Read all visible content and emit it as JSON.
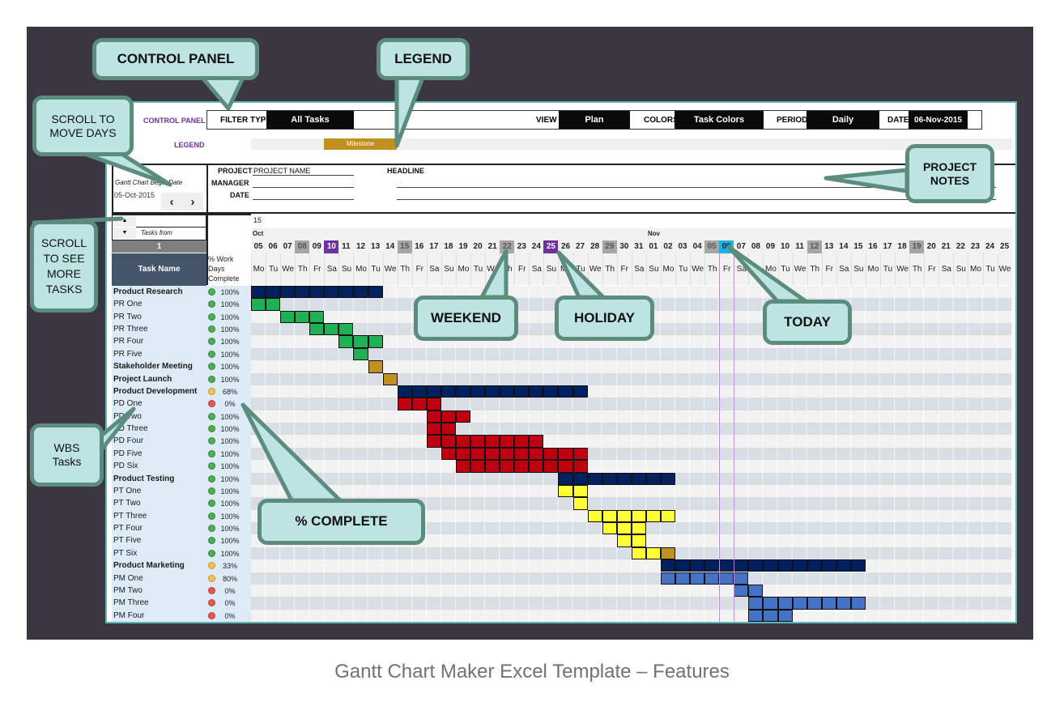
{
  "caption": "Gantt Chart Maker Excel Template – Features",
  "control_panel": {
    "title": "CONTROL PANEL",
    "filter_type_label": "FILTER TYPE",
    "filter_type": "All Tasks",
    "view_label": "VIEW",
    "view": "Plan",
    "colors_label": "COLORS",
    "colors": "Task Colors",
    "period_label": "PERIOD",
    "period": "Daily",
    "date_label": "DATE",
    "date": "06-Nov-2015"
  },
  "legend": {
    "title": "LEGEND",
    "items": [
      {
        "label": "Milestone",
        "color": "#c09020"
      }
    ]
  },
  "project": {
    "project_label": "PROJECT",
    "project_name": "PROJECT NAME",
    "manager_label": "MANAGER",
    "date_label": "DATE",
    "headline_label": "HEADLINE"
  },
  "begin_date": {
    "label": "Gantt Chart Begin Date",
    "value": "05-Oct-2015",
    "prev_icon": "chevron-left-icon",
    "next_icon": "chevron-right-icon"
  },
  "task_scroll": {
    "up_icon": "triangle-up-icon",
    "down_icon": "triangle-down-icon",
    "label": "Tasks from",
    "value": "1"
  },
  "columns": {
    "task_name": "Task Name",
    "pct": "% Work Days Complete"
  },
  "timeline": {
    "week_label": "15",
    "months": [
      {
        "label": "Oct",
        "col": 0
      },
      {
        "label": "Nov",
        "col": 27
      }
    ],
    "dates": [
      "05",
      "06",
      "07",
      "08",
      "09",
      "10",
      "11",
      "12",
      "13",
      "14",
      "15",
      "16",
      "17",
      "18",
      "19",
      "20",
      "21",
      "22",
      "23",
      "24",
      "25",
      "26",
      "27",
      "28",
      "29",
      "30",
      "31",
      "01",
      "02",
      "03",
      "04",
      "05",
      "06",
      "07",
      "08",
      "09",
      "10",
      "11",
      "12",
      "13",
      "14",
      "15",
      "16",
      "17",
      "18",
      "19",
      "20",
      "21",
      "22",
      "23",
      "24",
      "25"
    ],
    "weekdays": [
      "Mo",
      "Tu",
      "We",
      "Th",
      "Fr",
      "Sa",
      "Su",
      "Mo",
      "Tu",
      "We",
      "Th",
      "Fr",
      "Sa",
      "Su",
      "Mo",
      "Tu",
      "We",
      "Th",
      "Fr",
      "Sa",
      "Su",
      "Mo",
      "Tu",
      "We",
      "Th",
      "Fr",
      "Sa",
      "Su",
      "Mo",
      "Tu",
      "We",
      "Th",
      "Fr",
      "Sa",
      "Su",
      "Mo",
      "Tu",
      "We",
      "Th",
      "Fr",
      "Sa",
      "Su",
      "Mo",
      "Tu",
      "We",
      "Th",
      "Fr",
      "Sa",
      "Su",
      "Mo",
      "Tu",
      "We"
    ],
    "start": "2015-10-05",
    "today": "2015-11-06",
    "weekend_dates": [
      "2015-10-08",
      "2015-10-15",
      "2015-10-22",
      "2015-10-29",
      "2015-11-05",
      "2015-11-12",
      "2015-11-19"
    ],
    "holiday_dates": [
      "2015-10-10",
      "2015-10-25"
    ]
  },
  "colors": {
    "summary": "#002060",
    "research": "#1db054",
    "milestone": "#c09020",
    "development": "#c00010",
    "testing": "#ffff33",
    "marketing": "#4472c4",
    "weekend": "#a6a6a6",
    "holiday": "#7030a0",
    "today": "#1fb0e8",
    "status_green": "#4caf50",
    "status_amber": "#ffc04d",
    "status_red": "#ee5555"
  },
  "tasks": [
    {
      "name": "Product Research",
      "bold": true,
      "pct": "100%",
      "status": "green",
      "bars": [
        {
          "start": "2015-10-05",
          "end": "2015-10-13",
          "color": "summary"
        }
      ]
    },
    {
      "name": "PR One",
      "pct": "100%",
      "status": "green",
      "bars": [
        {
          "start": "2015-10-05",
          "end": "2015-10-06",
          "color": "research"
        }
      ]
    },
    {
      "name": "PR Two",
      "pct": "100%",
      "status": "green",
      "bars": [
        {
          "start": "2015-10-07",
          "end": "2015-10-09",
          "color": "research"
        }
      ]
    },
    {
      "name": "PR Three",
      "pct": "100%",
      "status": "green",
      "bars": [
        {
          "start": "2015-10-09",
          "end": "2015-10-11",
          "color": "research"
        }
      ]
    },
    {
      "name": "PR Four",
      "pct": "100%",
      "status": "green",
      "bars": [
        {
          "start": "2015-10-11",
          "end": "2015-10-13",
          "color": "research"
        }
      ]
    },
    {
      "name": "PR Five",
      "pct": "100%",
      "status": "green",
      "bars": [
        {
          "start": "2015-10-12",
          "end": "2015-10-12",
          "color": "research"
        }
      ]
    },
    {
      "name": "Stakeholder Meeting",
      "bold": true,
      "pct": "100%",
      "status": "green",
      "bars": [
        {
          "start": "2015-10-13",
          "end": "2015-10-13",
          "color": "milestone"
        }
      ]
    },
    {
      "name": "Project Launch",
      "bold": true,
      "pct": "100%",
      "status": "green",
      "bars": [
        {
          "start": "2015-10-14",
          "end": "2015-10-14",
          "color": "milestone"
        }
      ]
    },
    {
      "name": "Product Development",
      "bold": true,
      "pct": "68%",
      "status": "amber",
      "bars": [
        {
          "start": "2015-10-15",
          "end": "2015-10-27",
          "color": "summary"
        }
      ]
    },
    {
      "name": "PD One",
      "pct": "0%",
      "status": "red",
      "bars": [
        {
          "start": "2015-10-15",
          "end": "2015-10-17",
          "color": "development"
        }
      ]
    },
    {
      "name": "PD Two",
      "pct": "100%",
      "status": "green",
      "bars": [
        {
          "start": "2015-10-17",
          "end": "2015-10-19",
          "color": "development"
        }
      ]
    },
    {
      "name": "PD Three",
      "pct": "100%",
      "status": "green",
      "bars": [
        {
          "start": "2015-10-17",
          "end": "2015-10-18",
          "color": "development"
        }
      ]
    },
    {
      "name": "PD Four",
      "pct": "100%",
      "status": "green",
      "bars": [
        {
          "start": "2015-10-17",
          "end": "2015-10-24",
          "color": "development"
        }
      ]
    },
    {
      "name": "PD Five",
      "pct": "100%",
      "status": "green",
      "bars": [
        {
          "start": "2015-10-18",
          "end": "2015-10-27",
          "color": "development"
        }
      ]
    },
    {
      "name": "PD Six",
      "pct": "100%",
      "status": "green",
      "bars": [
        {
          "start": "2015-10-19",
          "end": "2015-10-27",
          "color": "development"
        }
      ]
    },
    {
      "name": "Product Testing",
      "bold": true,
      "pct": "100%",
      "status": "green",
      "bars": [
        {
          "start": "2015-10-26",
          "end": "2015-11-02",
          "color": "summary"
        }
      ]
    },
    {
      "name": "PT One",
      "pct": "100%",
      "status": "green",
      "bars": [
        {
          "start": "2015-10-26",
          "end": "2015-10-27",
          "color": "testing"
        }
      ]
    },
    {
      "name": "PT Two",
      "pct": "100%",
      "status": "green",
      "bars": [
        {
          "start": "2015-10-27",
          "end": "2015-10-27",
          "color": "testing"
        }
      ]
    },
    {
      "name": "PT Three",
      "pct": "100%",
      "status": "green",
      "bars": [
        {
          "start": "2015-10-28",
          "end": "2015-11-02",
          "color": "testing"
        }
      ]
    },
    {
      "name": "PT Four",
      "pct": "100%",
      "status": "green",
      "bars": [
        {
          "start": "2015-10-29",
          "end": "2015-10-31",
          "color": "testing"
        }
      ]
    },
    {
      "name": "PT Five",
      "pct": "100%",
      "status": "green",
      "bars": [
        {
          "start": "2015-10-30",
          "end": "2015-10-31",
          "color": "testing"
        }
      ]
    },
    {
      "name": "PT Six",
      "pct": "100%",
      "status": "green",
      "bars": [
        {
          "start": "2015-10-31",
          "end": "2015-11-01",
          "color": "testing"
        },
        {
          "start": "2015-11-02",
          "end": "2015-11-02",
          "color": "milestone"
        }
      ]
    },
    {
      "name": "Product Marketing",
      "bold": true,
      "pct": "33%",
      "status": "amber",
      "bars": [
        {
          "start": "2015-11-02",
          "end": "2015-11-15",
          "color": "summary"
        }
      ]
    },
    {
      "name": "PM One",
      "pct": "80%",
      "status": "amber",
      "bars": [
        {
          "start": "2015-11-02",
          "end": "2015-11-07",
          "color": "marketing"
        }
      ]
    },
    {
      "name": "PM Two",
      "pct": "0%",
      "status": "red",
      "bars": [
        {
          "start": "2015-11-07",
          "end": "2015-11-08",
          "color": "marketing"
        }
      ]
    },
    {
      "name": "PM Three",
      "pct": "0%",
      "status": "red",
      "bars": [
        {
          "start": "2015-11-08",
          "end": "2015-11-15",
          "color": "marketing"
        }
      ]
    },
    {
      "name": "PM Four",
      "pct": "0%",
      "status": "red",
      "bars": [
        {
          "start": "2015-11-08",
          "end": "2015-11-10",
          "color": "marketing"
        }
      ]
    }
  ],
  "callouts": {
    "control_panel": "CONTROL PANEL",
    "legend": "LEGEND",
    "scroll_days": "SCROLL TO MOVE DAYS",
    "scroll_tasks": "SCROLL TO SEE MORE TASKS",
    "project_notes": "PROJECT NOTES",
    "weekend": "WEEKEND",
    "holiday": "HOLIDAY",
    "today": "TODAY",
    "wbs": "WBS Tasks",
    "pct_complete": "% COMPLETE"
  }
}
